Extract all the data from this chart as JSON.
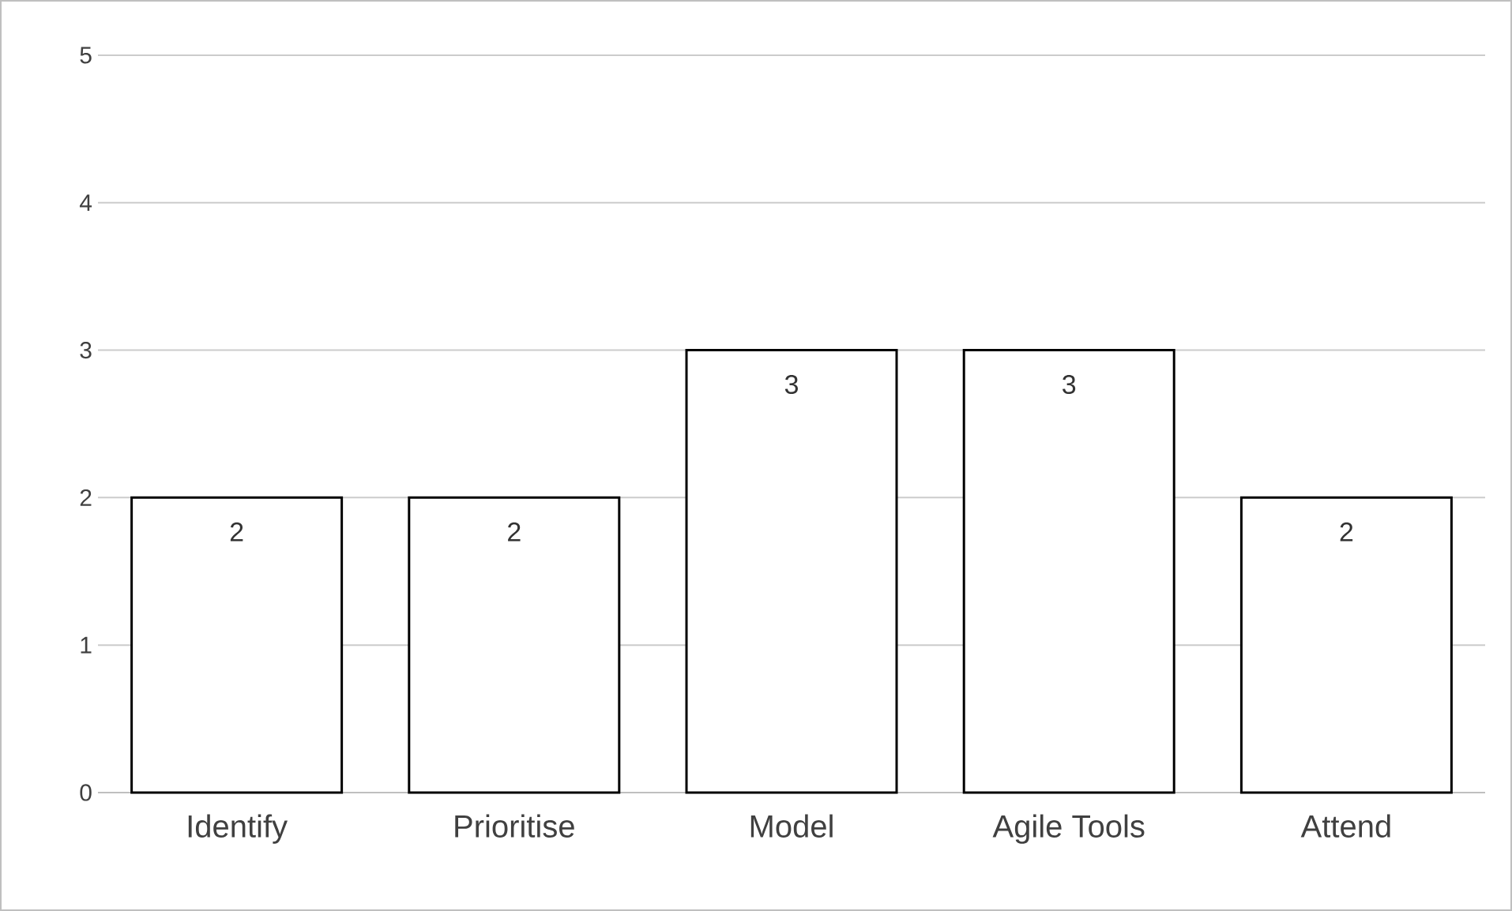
{
  "chart_data": {
    "type": "bar",
    "categories": [
      "Identify",
      "Prioritise",
      "Model",
      "Agile Tools",
      "Attend"
    ],
    "values": [
      2,
      2,
      3,
      3,
      2
    ],
    "color": "#000000",
    "ylim": [
      0,
      5
    ],
    "yticks": [
      0,
      1,
      2,
      3,
      4,
      5
    ],
    "grid": "y",
    "data_labels": true
  }
}
